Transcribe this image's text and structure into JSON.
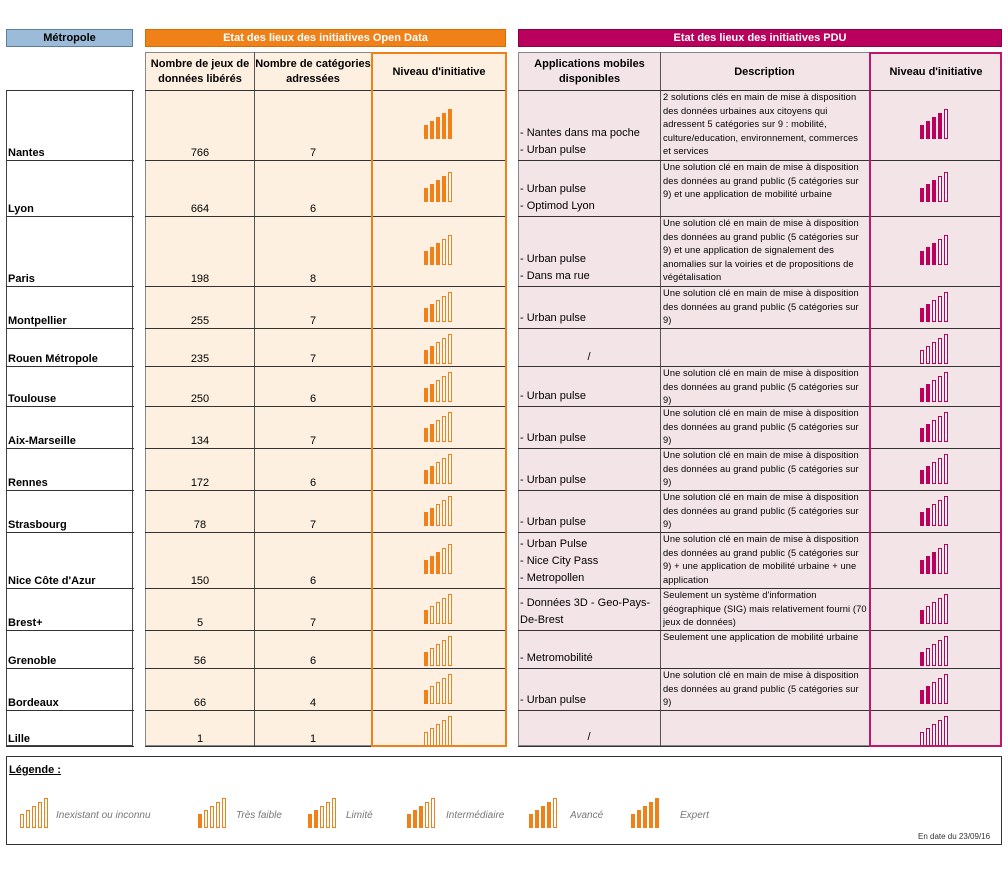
{
  "headers": {
    "metropole": "Métropole",
    "open_data": "Etat des lieux des initiatives Open Data",
    "pdu": "Etat des lieux des initiatives PDU"
  },
  "columns": {
    "datasets": "Nombre de jeux de données libérés",
    "categories": "Nombre de catégories adressées",
    "od_level": "Niveau d'initiative",
    "apps": "Applications mobiles disponibles",
    "description": "Description",
    "pdu_level": "Niveau d'initiative"
  },
  "colors": {
    "open_data": "#f08018",
    "pdu": "#b8005c",
    "metropole": "#9bbbd9"
  },
  "rows": [
    {
      "city": "Nantes",
      "datasets": "766",
      "categories": "7",
      "od_level": 5,
      "apps": [
        "- Nantes dans ma poche",
        "- Urban pulse"
      ],
      "description": " 2 solutions clés en main de mise à disposition des données urbaines aux citoyens qui adressent 5 catégories sur 9 : mobilité, culture/education, environnement, commerces et services",
      "pdu_level": 4
    },
    {
      "city": "Lyon",
      "datasets": "664",
      "categories": "6",
      "od_level": 4,
      "apps": [
        "- Urban pulse",
        "- Optimod Lyon"
      ],
      "description": "Une solution clé en main de mise à disposition des données au grand public (5 catégories sur 9) et une application de mobilité urbaine",
      "pdu_level": 3
    },
    {
      "city": "Paris",
      "datasets": "198",
      "categories": "8",
      "od_level": 3,
      "apps": [
        "- Urban pulse",
        "- Dans ma rue"
      ],
      "description": "Une solution clé en main de mise à disposition des données au grand public (5 catégories sur 9) et une application de signalement des anomalies sur la voiries et de propositions de végétalisation",
      "pdu_level": 3
    },
    {
      "city": "Montpellier",
      "datasets": "255",
      "categories": "7",
      "od_level": 2,
      "apps": [
        "- Urban pulse"
      ],
      "description": "Une solution clé en main de mise à disposition des données au grand public (5 catégories sur 9)",
      "pdu_level": 2
    },
    {
      "city": "Rouen Métropole",
      "datasets": "235",
      "categories": "7",
      "od_level": 2,
      "apps": [],
      "slash": "/",
      "description": "",
      "pdu_level": 0
    },
    {
      "city": "Toulouse",
      "datasets": "250",
      "categories": "6",
      "od_level": 2,
      "apps": [
        "- Urban pulse"
      ],
      "description": "Une solution clé en main de mise à disposition des données au grand public (5 catégories sur 9)",
      "pdu_level": 2
    },
    {
      "city": "Aix-Marseille",
      "datasets": "134",
      "categories": "7",
      "od_level": 2,
      "apps": [
        "- Urban pulse"
      ],
      "description": "Une solution clé en main de mise à disposition des données au grand public (5 catégories sur 9)",
      "pdu_level": 2
    },
    {
      "city": "Rennes",
      "datasets": "172",
      "categories": "6",
      "od_level": 2,
      "apps": [
        "- Urban pulse"
      ],
      "description": "Une solution clé en main de mise à disposition des données au grand public (5 catégories sur 9)",
      "pdu_level": 2
    },
    {
      "city": "Strasbourg",
      "datasets": "78",
      "categories": "7",
      "od_level": 2,
      "apps": [
        "- Urban pulse"
      ],
      "description": "Une solution clé en main de mise à disposition des données au grand public (5 catégories sur 9)",
      "pdu_level": 2
    },
    {
      "city": "Nice Côte d'Azur",
      "datasets": "150",
      "categories": "6",
      "od_level": 3,
      "apps": [
        "- Urban Pulse",
        "- Nice City Pass",
        "- Metropollen"
      ],
      "description": "Une solution clé en main de mise à disposition des données au grand public (5 catégories sur 9) + une application de mobilité urbaine + une application",
      "pdu_level": 3
    },
    {
      "city": "Brest+",
      "datasets": "5",
      "categories": "7",
      "od_level": 1,
      "apps": [
        "- Données 3D - Geo-Pays-De-Brest"
      ],
      "description": "Seulement un système d'information géographique (SIG) mais relativement fourni (70 jeux de données)",
      "pdu_level": 1
    },
    {
      "city": "Grenoble",
      "datasets": "56",
      "categories": "6",
      "od_level": 1,
      "apps": [
        " - Metromobilité"
      ],
      "description": "Seulement une application de mobilité urbaine",
      "pdu_level": 1
    },
    {
      "city": "Bordeaux",
      "datasets": "66",
      "categories": "4",
      "od_level": 1,
      "apps": [
        " - Urban pulse"
      ],
      "description": "Une solution clé en main de mise à disposition des données au grand public (5 catégories sur 9)",
      "pdu_level": 2
    },
    {
      "city": "Lille",
      "datasets": "1",
      "categories": "1",
      "od_level": 0,
      "apps": [],
      "slash": "/",
      "description": "",
      "pdu_level": 0
    }
  ],
  "legend": {
    "title": "Légende :",
    "items": [
      {
        "label": "Inexistant ou inconnu",
        "level": 0
      },
      {
        "label": "Très faible",
        "level": 1
      },
      {
        "label": "Limité",
        "level": 2
      },
      {
        "label": "Intermédiaire",
        "level": 3
      },
      {
        "label": "Avancé",
        "level": 4
      },
      {
        "label": "Expert",
        "level": 5
      }
    ],
    "date_note": "En date du 23/09/16"
  }
}
